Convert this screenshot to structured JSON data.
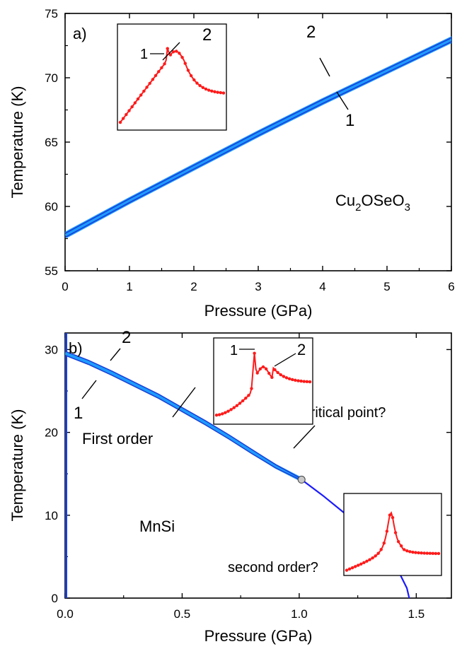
{
  "colors": {
    "axis": "#000000",
    "band_dark": "#1a3fd6",
    "band_light": "#1e9cff",
    "line": "#1a1aff",
    "inset_data": "#ff1a1a",
    "marker": "#c8c8c8"
  },
  "chart_data": [
    {
      "panel_label": "a)",
      "type": "line",
      "xlabel": "Pressure (GPa)",
      "ylabel": "Temperature (K)",
      "xlim": [
        0,
        6
      ],
      "ylim": [
        55,
        75
      ],
      "xticks": [
        0,
        1,
        2,
        3,
        4,
        5,
        6
      ],
      "xtick_labels": [
        "0",
        "1",
        "2",
        "3",
        "4",
        "5",
        "6"
      ],
      "yticks": [
        55,
        60,
        65,
        70,
        75
      ],
      "ytick_labels": [
        "55",
        "60",
        "65",
        "70",
        "75"
      ],
      "material": {
        "base": "Cu",
        "s1": "2",
        "mid": "OSeO",
        "s2": "3"
      },
      "series": [
        {
          "name": "2",
          "x": [
            0,
            1,
            2,
            3,
            4,
            5,
            6,
            6.2
          ],
          "y": [
            57.9,
            60.6,
            63.2,
            65.8,
            68.3,
            70.7,
            73.1,
            73.8
          ]
        },
        {
          "name": "1",
          "x": [
            0,
            1,
            2,
            3,
            4,
            5,
            6,
            6.2
          ],
          "y": [
            57.6,
            60.3,
            62.9,
            65.5,
            68.0,
            70.4,
            72.8,
            73.5
          ]
        }
      ],
      "annotations": {
        "upper": "2",
        "lower": "1"
      },
      "inset": {
        "label_left": "1",
        "label_right": "2"
      }
    },
    {
      "panel_label": "b)",
      "type": "line",
      "xlabel": "Pressure (GPa)",
      "ylabel": "Temperature (K)",
      "xlim": [
        0,
        1.65
      ],
      "ylim": [
        0,
        32
      ],
      "xticks": [
        0,
        0.5,
        1.0,
        1.5
      ],
      "xtick_labels": [
        "0.0",
        "0.5",
        "1.0",
        "1.5"
      ],
      "yticks": [
        0,
        10,
        20,
        30
      ],
      "ytick_labels": [
        "0",
        "10",
        "20",
        "30"
      ],
      "material": "MnSi",
      "series": [
        {
          "name": "2",
          "x": [
            0,
            0.1,
            0.2,
            0.3,
            0.4,
            0.5,
            0.6,
            0.7,
            0.8,
            0.9,
            1.01
          ],
          "y": [
            29.8,
            28.7,
            27.4,
            26.0,
            24.6,
            23.0,
            21.4,
            19.7,
            17.9,
            16.1,
            14.4
          ]
        },
        {
          "name": "1",
          "x": [
            0,
            0.1,
            0.2,
            0.3,
            0.4,
            0.5,
            0.6,
            0.7,
            0.8,
            0.9,
            1.01
          ],
          "y": [
            29.3,
            28.2,
            26.9,
            25.5,
            24.1,
            22.5,
            20.9,
            19.2,
            17.4,
            15.7,
            14.2
          ]
        },
        {
          "name": "second order?",
          "x": [
            1.01,
            1.1,
            1.2,
            1.3,
            1.38,
            1.43,
            1.46,
            1.47
          ],
          "y": [
            14.3,
            12.4,
            10.1,
            7.2,
            4.8,
            2.9,
            1.2,
            0
          ]
        }
      ],
      "tricritical_point": {
        "x": 1.01,
        "y": 14.3
      },
      "annotations": {
        "upper": "2",
        "lower": "1",
        "first_order": "First order",
        "tricritical": "tricritical point?",
        "second_order": "second order?"
      },
      "inset": {
        "label_left": "1",
        "label_right": "2"
      }
    }
  ]
}
